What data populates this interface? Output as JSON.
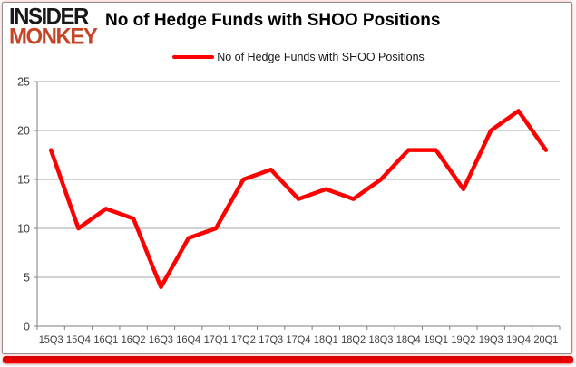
{
  "logo": {
    "line1": "INSIDER",
    "line2": "MONKEY"
  },
  "header": {
    "title": "No of Hedge Funds with SHOO Positions"
  },
  "legend": {
    "label": "No of Hedge Funds with SHOO Positions"
  },
  "colors": {
    "line": "#fe0000",
    "logo_accent": "#c64529",
    "logo_primary": "#181818",
    "grid": "#a3a3a3",
    "axis": "#7f7f7f",
    "axis_text": "#3c3c3c",
    "bottom_bar_top": "#d40000",
    "bottom_bar": "#fb0000"
  },
  "chart_data": {
    "type": "line",
    "title": "No of Hedge Funds with SHOO Positions",
    "categories": [
      "15Q3",
      "15Q4",
      "16Q1",
      "16Q2",
      "16Q3",
      "16Q4",
      "17Q1",
      "17Q2",
      "17Q3",
      "17Q4",
      "18Q1",
      "18Q2",
      "18Q3",
      "18Q4",
      "19Q1",
      "19Q2",
      "19Q3",
      "19Q4",
      "20Q1"
    ],
    "series": [
      {
        "name": "No of Hedge Funds with SHOO Positions",
        "values": [
          18,
          10,
          12,
          11,
          4,
          9,
          10,
          15,
          16,
          13,
          14,
          13,
          15,
          18,
          18,
          14,
          20,
          22,
          18
        ]
      }
    ],
    "xlabel": "",
    "ylabel": "",
    "ylim": [
      0,
      25
    ],
    "yticks": [
      0,
      5,
      10,
      15,
      20,
      25
    ],
    "grid": true,
    "legend_position": "top"
  }
}
